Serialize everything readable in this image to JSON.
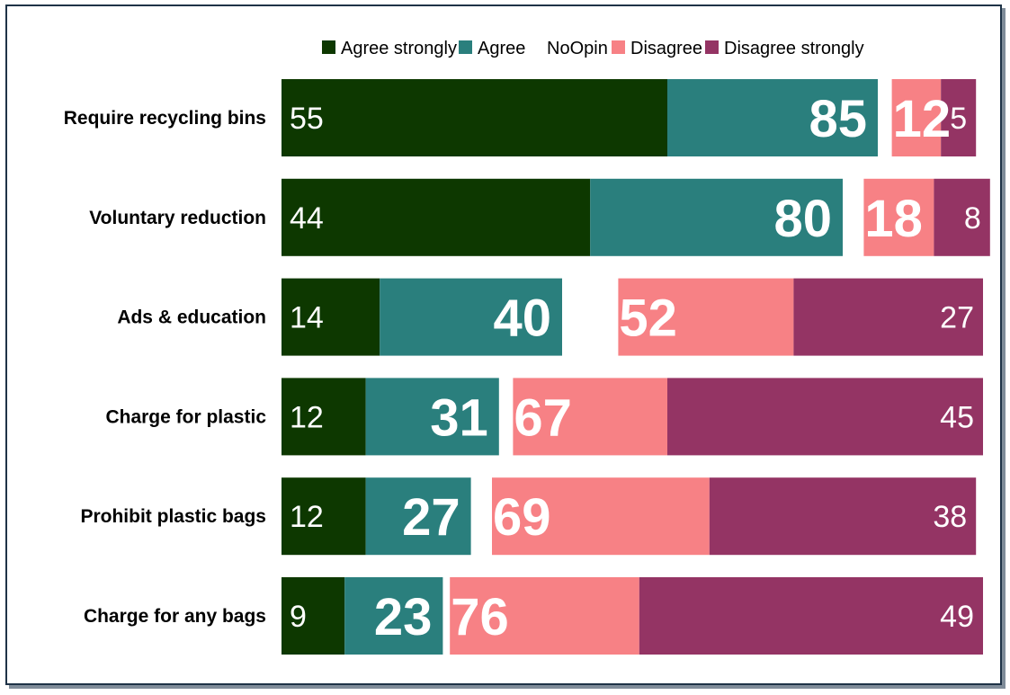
{
  "chart_data": {
    "type": "bar",
    "orientation": "horizontal",
    "stacked": "diverging",
    "title": "",
    "xlabel": "",
    "ylabel": "",
    "categories": [
      "Require recycling bins",
      "Voluntary reduction",
      "Ads & education",
      "Charge for plastic",
      "Prohibit plastic bags",
      "Charge for any bags"
    ],
    "legend": {
      "position": "top",
      "entries": [
        {
          "name": "Agree strongly",
          "color": "#0d3800"
        },
        {
          "name": "Agree",
          "color": "#2a7f7d"
        },
        {
          "name": "NoOpin",
          "color": "#ffffff"
        },
        {
          "name": "Disagree",
          "color": "#f78185"
        },
        {
          "name": "Disagree strongly",
          "color": "#943464"
        }
      ]
    },
    "series": [
      {
        "name": "Agree strongly",
        "values": [
          55,
          44,
          14,
          12,
          12,
          9
        ]
      },
      {
        "name": "Agree",
        "values": [
          30,
          36,
          26,
          19,
          15,
          14
        ]
      },
      {
        "name": "NoOpin",
        "values": [
          2,
          3,
          8,
          2,
          3,
          1
        ]
      },
      {
        "name": "Disagree",
        "values": [
          7,
          10,
          25,
          22,
          31,
          27
        ]
      },
      {
        "name": "Disagree strongly",
        "values": [
          5,
          8,
          27,
          45,
          38,
          49
        ]
      }
    ],
    "total_agree_labels": [
      85,
      80,
      40,
      31,
      27,
      23
    ],
    "total_disagree_labels": [
      12,
      18,
      52,
      67,
      69,
      76
    ],
    "strong_agree_labels": [
      55,
      44,
      14,
      12,
      12,
      9
    ],
    "strong_disagree_labels": [
      5,
      8,
      27,
      45,
      38,
      49
    ],
    "grid": false
  }
}
